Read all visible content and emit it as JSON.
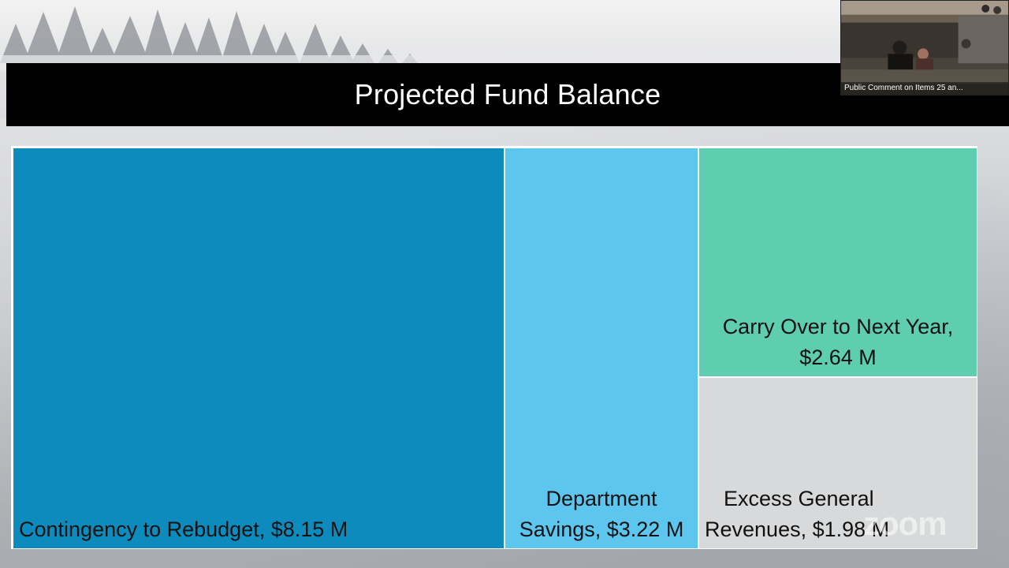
{
  "slide": {
    "title": "Projected Fund Balance"
  },
  "chart_data": {
    "type": "treemap",
    "title": "Projected Fund Balance",
    "items": [
      {
        "label": "Contingency to Rebudget, $8.15 M",
        "value": 8.15,
        "color": "#0e8bbd"
      },
      {
        "label_line1": "Department",
        "label_line2": "Savings, $3.22 M",
        "value": 3.22,
        "color": "#5cc6ef"
      },
      {
        "label_line1": "Carry Over to Next Year,",
        "label_line2": "$2.64 M",
        "value": 2.64,
        "color": "#5ecdb0"
      },
      {
        "label_line1": "Excess General",
        "label_line2": "Revenues, $1.98 M",
        "value": 1.98,
        "color": "#d8d9da"
      }
    ]
  },
  "video_panel": {
    "caption": "Public Comment on Items 25 an..."
  },
  "watermark": "zoom"
}
